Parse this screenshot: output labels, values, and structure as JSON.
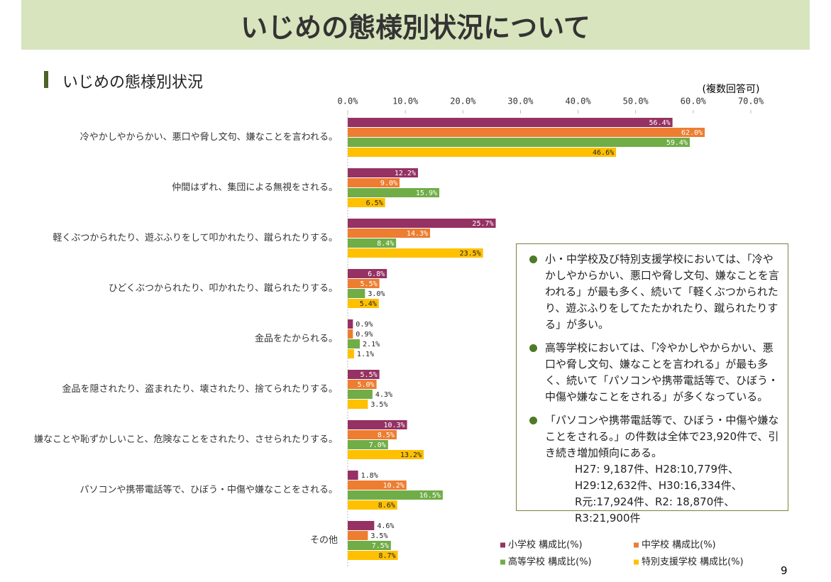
{
  "header": {
    "title": "いじめの態様別状況について"
  },
  "section_title": "いじめの態様別状況",
  "chart_data": {
    "type": "bar",
    "orientation": "horizontal",
    "annotation": "(複数回答可)",
    "categories": [
      "冷やかしやからかい、悪口や脅し文句、嫌なことを言われる。",
      "仲間はずれ、集団による無視をされる。",
      "軽くぶつかられたり、遊ぶふりをして叩かれたり、蹴られたりする。",
      "ひどくぶつかられたり、叩かれたり、蹴られたりする。",
      "金品をたかられる。",
      "金品を隠されたり、盗まれたり、壊されたり、捨てられたりする。",
      "嫌なことや恥ずかしいこと、危険なことをされたり、させられたりする。",
      "パソコンや携帯電話等で、ひぼう・中傷や嫌なことをされる。",
      "その他"
    ],
    "series": [
      {
        "name": "小学校 構成比(%)",
        "color": "#953163",
        "values": [
          56.4,
          12.2,
          25.7,
          6.8,
          0.9,
          5.5,
          10.3,
          1.8,
          4.6
        ],
        "value_labels": [
          "56.4%",
          "12.2%",
          "25.7%",
          "6.8%",
          "0.9%",
          "5.5%",
          "10.3%",
          "1.8%",
          "4.6%"
        ]
      },
      {
        "name": "中学校 構成比(%)",
        "color": "#ed7d31",
        "values": [
          62.0,
          9.0,
          14.3,
          5.5,
          0.9,
          5.0,
          8.5,
          10.2,
          3.5
        ],
        "value_labels": [
          "62.0%",
          "9.0%",
          "14.3%",
          "5.5%",
          "0.9%",
          "5.0%",
          "8.5%",
          "10.2%",
          "3.5%"
        ]
      },
      {
        "name": "高等学校 構成比(%)",
        "color": "#70ad47",
        "values": [
          59.4,
          15.9,
          8.4,
          3.0,
          2.1,
          4.3,
          7.0,
          16.5,
          7.5
        ],
        "value_labels": [
          "59.4%",
          "15.9%",
          "8.4%",
          "3.0%",
          "2.1%",
          "4.3%",
          "7.0%",
          "16.5%",
          "7.5%"
        ]
      },
      {
        "name": "特別支援学校 構成比(%)",
        "color": "#ffc000",
        "values": [
          46.6,
          6.5,
          23.5,
          5.4,
          1.1,
          3.5,
          13.2,
          8.6,
          8.7
        ],
        "value_labels": [
          "46.6%",
          "6.5%",
          "23.5%",
          "5.4%",
          "1.1%",
          "3.5%",
          "13.2%",
          "8.6%",
          "8.7%"
        ]
      }
    ],
    "xlim": [
      0,
      70
    ],
    "xticks": [
      {
        "value": 0,
        "label": "0.0%"
      },
      {
        "value": 10,
        "label": "10.0%"
      },
      {
        "value": 20,
        "label": "20.0%"
      },
      {
        "value": 30,
        "label": "30.0%"
      },
      {
        "value": 40,
        "label": "40.0%"
      },
      {
        "value": 50,
        "label": "50.0%"
      },
      {
        "value": 60,
        "label": "60.0%"
      },
      {
        "value": 70,
        "label": "70.0%"
      }
    ],
    "legend_position": "lower right"
  },
  "notes": {
    "bullets": [
      "小・中学校及び特別支援学校においては、「冷やかしやからかい、悪口や脅し文句、嫌なことを言われる」が最も多く、続いて「軽くぶつかられたり、遊ぶふりをしてたたかれたり、蹴られたりする」が多い。",
      "高等学校においては、「冷やかしやからかい、悪口や脅し文句、嫌なことを言われる」が最も多く、続いて「パソコンや携帯電話等で、ひぼう・中傷や嫌なことをされる」が多くなっている。",
      "「パソコンや携帯電話等で、ひぼう・中傷や嫌なことをされる。」の件数は全体で23,920件で、引き続き増加傾向にある。"
    ],
    "details": [
      "H27: 9,187件、H28:10,779件、",
      "H29:12,632件、H30:16,334件、",
      "R元:17,924件、R2: 18,870件、",
      "R3:21,900件"
    ]
  },
  "page_number": "9"
}
